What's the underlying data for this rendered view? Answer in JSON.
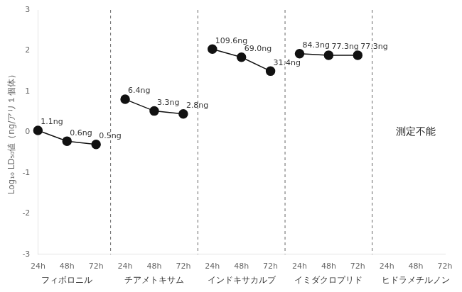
{
  "chart_data": {
    "type": "line",
    "ylabel": "Log₁₀ LD₅₀値（ng/アリ１個体）",
    "categories": [
      "24h",
      "48h",
      "72h",
      "24h",
      "48h",
      "72h",
      "24h",
      "48h",
      "72h",
      "24h",
      "48h",
      "72h",
      "24h",
      "48h",
      "72h"
    ],
    "series": [
      {
        "name": "フィボロニル",
        "color": "#111111",
        "values": [
          0.0414,
          -0.2218,
          -0.301,
          null,
          null,
          null,
          null,
          null,
          null,
          null,
          null,
          null,
          null,
          null,
          null
        ],
        "value_labels": [
          "1.1ng",
          "0.6ng",
          "0.5ng",
          null,
          null,
          null,
          null,
          null,
          null,
          null,
          null,
          null,
          null,
          null,
          null
        ]
      },
      {
        "name": "チアメトキサム",
        "color": "#111111",
        "values": [
          null,
          null,
          null,
          0.8062,
          0.5185,
          0.4472,
          null,
          null,
          null,
          null,
          null,
          null,
          null,
          null,
          null
        ],
        "value_labels": [
          null,
          null,
          null,
          "6.4ng",
          "3.3ng",
          "2.8ng",
          null,
          null,
          null,
          null,
          null,
          null,
          null,
          null,
          null
        ]
      },
      {
        "name": "インドキサカルブ",
        "color": "#111111",
        "values": [
          null,
          null,
          null,
          null,
          null,
          null,
          2.0398,
          1.8388,
          1.4971,
          null,
          null,
          null,
          null,
          null,
          null
        ],
        "value_labels": [
          null,
          null,
          null,
          null,
          null,
          null,
          "109.6ng",
          "69.0ng",
          "31.4ng",
          null,
          null,
          null,
          null,
          null,
          null
        ]
      },
      {
        "name": "イミダクロプリド",
        "color": "#111111",
        "values": [
          null,
          null,
          null,
          null,
          null,
          null,
          null,
          null,
          null,
          1.9258,
          1.8881,
          1.8881,
          null,
          null,
          null
        ],
        "value_labels": [
          null,
          null,
          null,
          null,
          null,
          null,
          null,
          null,
          null,
          "84.3ng",
          "77.3ng",
          "77.3ng",
          null,
          null,
          null
        ]
      },
      {
        "name": "ヒドラメチルノン",
        "color": "#111111",
        "values": [
          null,
          null,
          null,
          null,
          null,
          null,
          null,
          null,
          null,
          null,
          null,
          null,
          null,
          null,
          null
        ],
        "value_labels": [
          null,
          null,
          null,
          null,
          null,
          null,
          null,
          null,
          null,
          null,
          null,
          null,
          null,
          null,
          null
        ]
      }
    ],
    "annotations": [
      {
        "text": "測定不能",
        "group": "ヒドラメチルノン",
        "y": 0
      }
    ],
    "ylim": [
      -3,
      3
    ],
    "yticks": [
      -3,
      -2,
      -1,
      0,
      1,
      2,
      3
    ],
    "grid": false,
    "data_labels": true
  }
}
